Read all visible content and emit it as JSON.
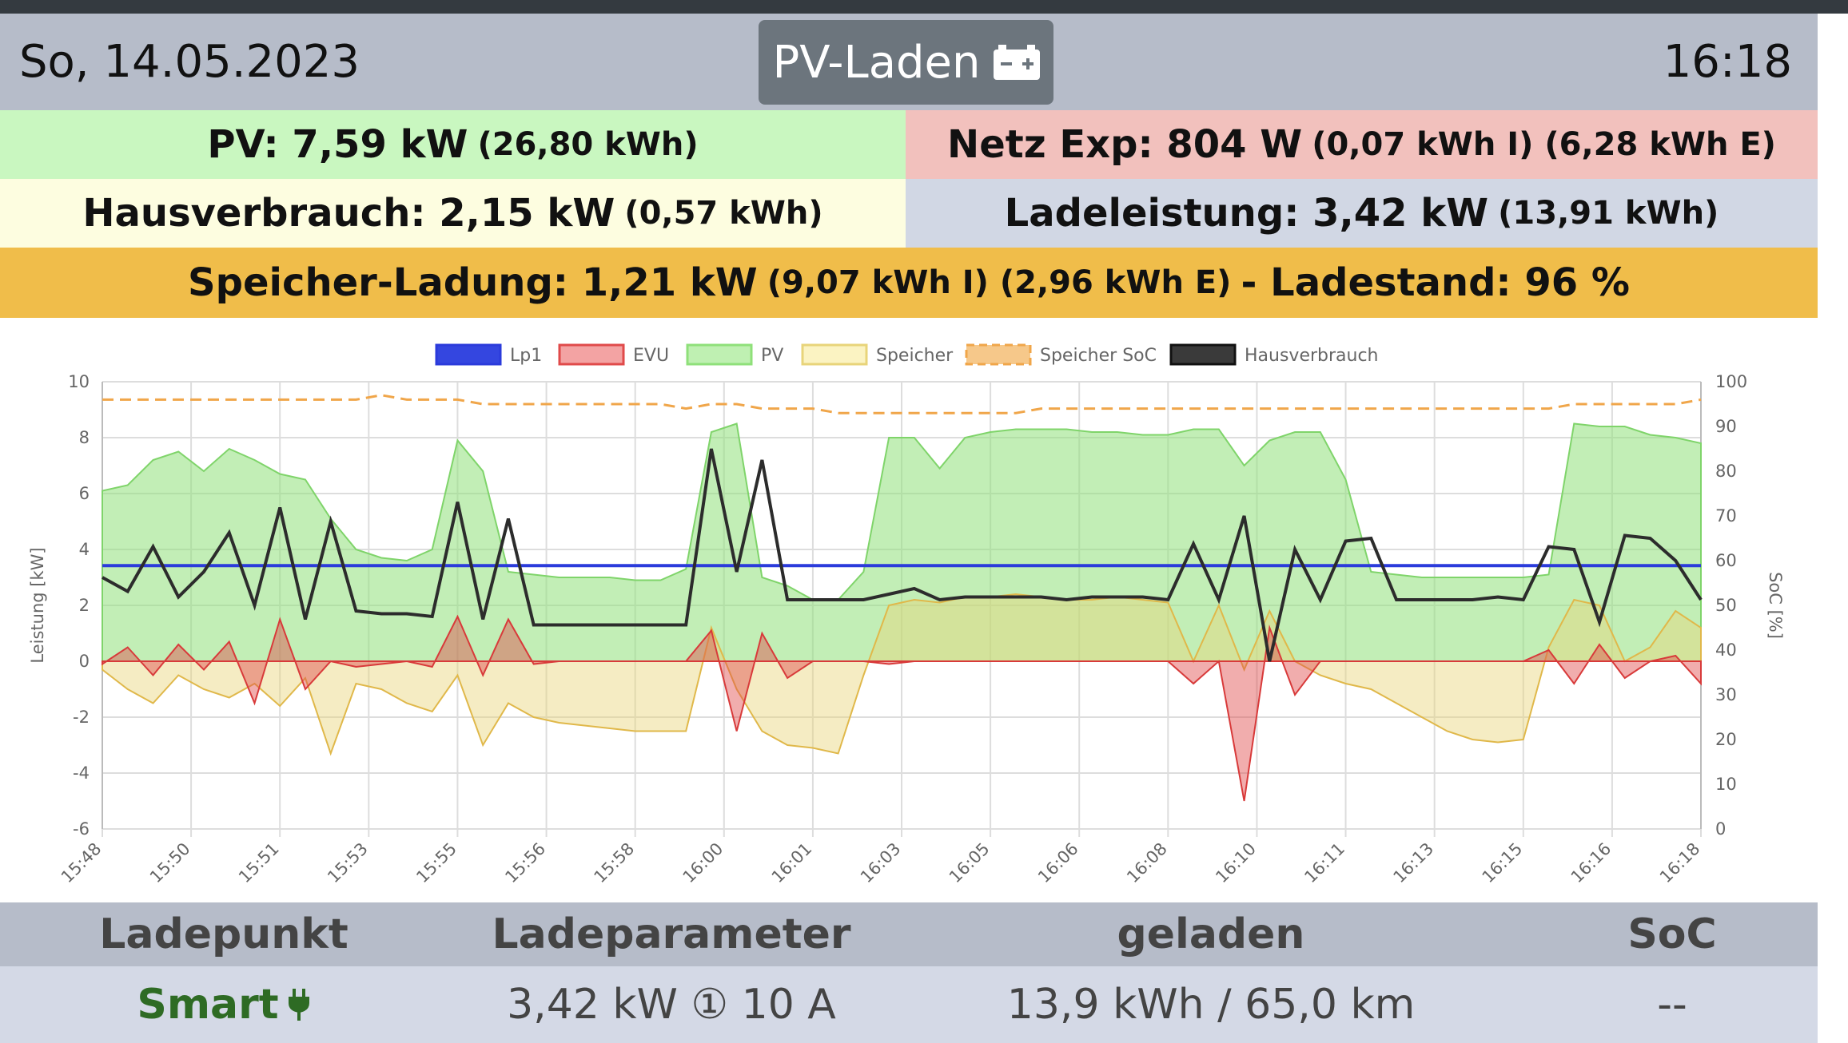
{
  "header": {
    "date": "So, 14.05.2023",
    "time": "16:18",
    "mode_label": "PV-Laden",
    "mode_icon": "battery-charging-icon"
  },
  "summary": {
    "pv": {
      "main": "PV: 7,59 kW",
      "detail": "(26,80 kWh)",
      "color": "#c9f7c0"
    },
    "grid": {
      "main": "Netz Exp: 804 W",
      "detail": "(0,07 kWh I) (6,28 kWh E)",
      "color": "#f2c1bd"
    },
    "house": {
      "main": "Hausverbrauch: 2,15 kW",
      "detail": "(0,57 kWh)",
      "color": "#fdfde0"
    },
    "charge": {
      "main": "Ladeleistung: 3,42 kW",
      "detail": "(13,91 kWh)",
      "color": "#d1d7e4"
    },
    "storage": {
      "main": "Speicher-Ladung: 1,21 kW",
      "detail": "(9,07 kWh I) (2,96 kWh E)",
      "soc": "- Ladestand: 96 %",
      "color": "#f0bd4a"
    }
  },
  "chart_data": {
    "type": "area",
    "legend": [
      "Lp1",
      "EVU",
      "PV",
      "Speicher",
      "Speicher SoC",
      "Hausverbrauch"
    ],
    "colors": {
      "Lp1": "#2b3bdb",
      "EVU": "#e04a4a",
      "PV": "#8fe07a",
      "Speicher": "#e8d47a",
      "Speicher SoC": "#f0a64a",
      "Hausverbrauch": "#2c2c2c"
    },
    "ylabel": "Leistung [kW]",
    "y2label": "SoC [%]",
    "ylim": [
      -6,
      10
    ],
    "y2lim": [
      0,
      100
    ],
    "yticks": [
      "10",
      "8",
      "6",
      "4",
      "2",
      "0",
      "-2",
      "-4",
      "-6"
    ],
    "y2ticks": [
      "100",
      "90",
      "80",
      "70",
      "60",
      "50",
      "40",
      "30",
      "20",
      "10",
      "0"
    ],
    "xticks": [
      "15:48",
      "15:50",
      "15:51",
      "15:53",
      "15:55",
      "15:56",
      "15:58",
      "16:00",
      "16:01",
      "16:03",
      "16:05",
      "16:06",
      "16:08",
      "16:10",
      "16:11",
      "16:13",
      "16:15",
      "16:16",
      "16:18"
    ],
    "series": [
      {
        "name": "PV",
        "values": [
          6.1,
          6.3,
          7.2,
          7.5,
          6.8,
          7.6,
          7.2,
          6.7,
          6.5,
          5.1,
          4.0,
          3.7,
          3.6,
          4.0,
          7.9,
          6.8,
          3.2,
          3.1,
          3.0,
          3.0,
          3.0,
          2.9,
          2.9,
          3.3,
          8.2,
          8.5,
          3.0,
          2.7,
          2.2,
          2.2,
          3.2,
          8.0,
          8.0,
          6.9,
          8.0,
          8.2,
          8.3,
          8.3,
          8.3,
          8.2,
          8.2,
          8.1,
          8.1,
          8.3,
          8.3,
          7.0,
          7.9,
          8.2,
          8.2,
          6.5,
          3.2,
          3.1,
          3.0,
          3.0,
          3.0,
          3.0,
          3.0,
          3.1,
          8.5,
          8.4,
          8.4,
          8.1,
          8.0,
          7.8
        ]
      },
      {
        "name": "Hausverbrauch",
        "values": [
          3.0,
          2.5,
          4.1,
          2.3,
          3.2,
          4.6,
          2.0,
          5.5,
          1.5,
          5.0,
          1.8,
          1.7,
          1.7,
          1.6,
          5.7,
          1.5,
          5.1,
          1.3,
          1.3,
          1.3,
          1.3,
          1.3,
          1.3,
          1.3,
          7.6,
          3.2,
          7.2,
          2.2,
          2.2,
          2.2,
          2.2,
          2.4,
          2.6,
          2.2,
          2.3,
          2.3,
          2.3,
          2.3,
          2.2,
          2.3,
          2.3,
          2.3,
          2.2,
          4.2,
          2.2,
          5.2,
          0.0,
          4.0,
          2.2,
          4.3,
          4.4,
          2.2,
          2.2,
          2.2,
          2.2,
          2.3,
          2.2,
          4.1,
          4.0,
          1.4,
          4.5,
          4.4,
          3.6,
          2.2
        ]
      },
      {
        "name": "Speicher",
        "values": [
          -0.3,
          -1.0,
          -1.5,
          -0.5,
          -1.0,
          -1.3,
          -0.8,
          -1.6,
          -0.6,
          -3.3,
          -0.8,
          -1.0,
          -1.5,
          -1.8,
          -0.5,
          -3.0,
          -1.5,
          -2.0,
          -2.2,
          -2.3,
          -2.4,
          -2.5,
          -2.5,
          -2.5,
          1.2,
          -1.0,
          -2.5,
          -3.0,
          -3.1,
          -3.3,
          -0.5,
          2.0,
          2.2,
          2.1,
          2.3,
          2.3,
          2.4,
          2.3,
          2.2,
          2.2,
          2.3,
          2.2,
          2.1,
          0.0,
          2.0,
          -0.3,
          1.8,
          0.0,
          -0.5,
          -0.8,
          -1.0,
          -1.5,
          -2.0,
          -2.5,
          -2.8,
          -2.9,
          -2.8,
          0.5,
          2.2,
          2.0,
          0.0,
          0.5,
          1.8,
          1.2
        ]
      },
      {
        "name": "EVU",
        "values": [
          -0.1,
          0.5,
          -0.5,
          0.6,
          -0.3,
          0.7,
          -1.5,
          1.5,
          -1.0,
          0.0,
          -0.2,
          -0.1,
          0.0,
          -0.2,
          1.6,
          -0.5,
          1.5,
          -0.1,
          0.0,
          0.0,
          0.0,
          0.0,
          0.0,
          0.0,
          1.1,
          -2.5,
          1.0,
          -0.6,
          0.0,
          0.0,
          0.0,
          -0.1,
          0.0,
          0.0,
          0.0,
          0.0,
          0.0,
          0.0,
          0.0,
          0.0,
          0.0,
          0.0,
          0.0,
          -0.8,
          0.0,
          -5.0,
          1.2,
          -1.2,
          0.0,
          0.0,
          0.0,
          0.0,
          0.0,
          0.0,
          0.0,
          0.0,
          0.0,
          0.4,
          -0.8,
          0.6,
          -0.6,
          0.0,
          0.2,
          -0.8
        ]
      },
      {
        "name": "Lp1",
        "values": [
          3.42
        ]
      },
      {
        "name": "Speicher SoC",
        "values": [
          96,
          96,
          96,
          96,
          96,
          96,
          96,
          96,
          96,
          96,
          96,
          97,
          96,
          96,
          96,
          95,
          95,
          95,
          95,
          95,
          95,
          95,
          95,
          94,
          95,
          95,
          94,
          94,
          94,
          93,
          93,
          93,
          93,
          93,
          93,
          93,
          93,
          94,
          94,
          94,
          94,
          94,
          94,
          94,
          94,
          94,
          94,
          94,
          94,
          94,
          94,
          94,
          94,
          94,
          94,
          94,
          94,
          94,
          95,
          95,
          95,
          95,
          95,
          96
        ]
      }
    ]
  },
  "table": {
    "headers": [
      "Ladepunkt",
      "Ladeparameter",
      "geladen",
      "SoC"
    ],
    "row": {
      "mode": "Smart",
      "params": "3,42 kW ① 10 A",
      "charged": "13,9 kWh / 65,0 km",
      "soc": "--"
    }
  }
}
